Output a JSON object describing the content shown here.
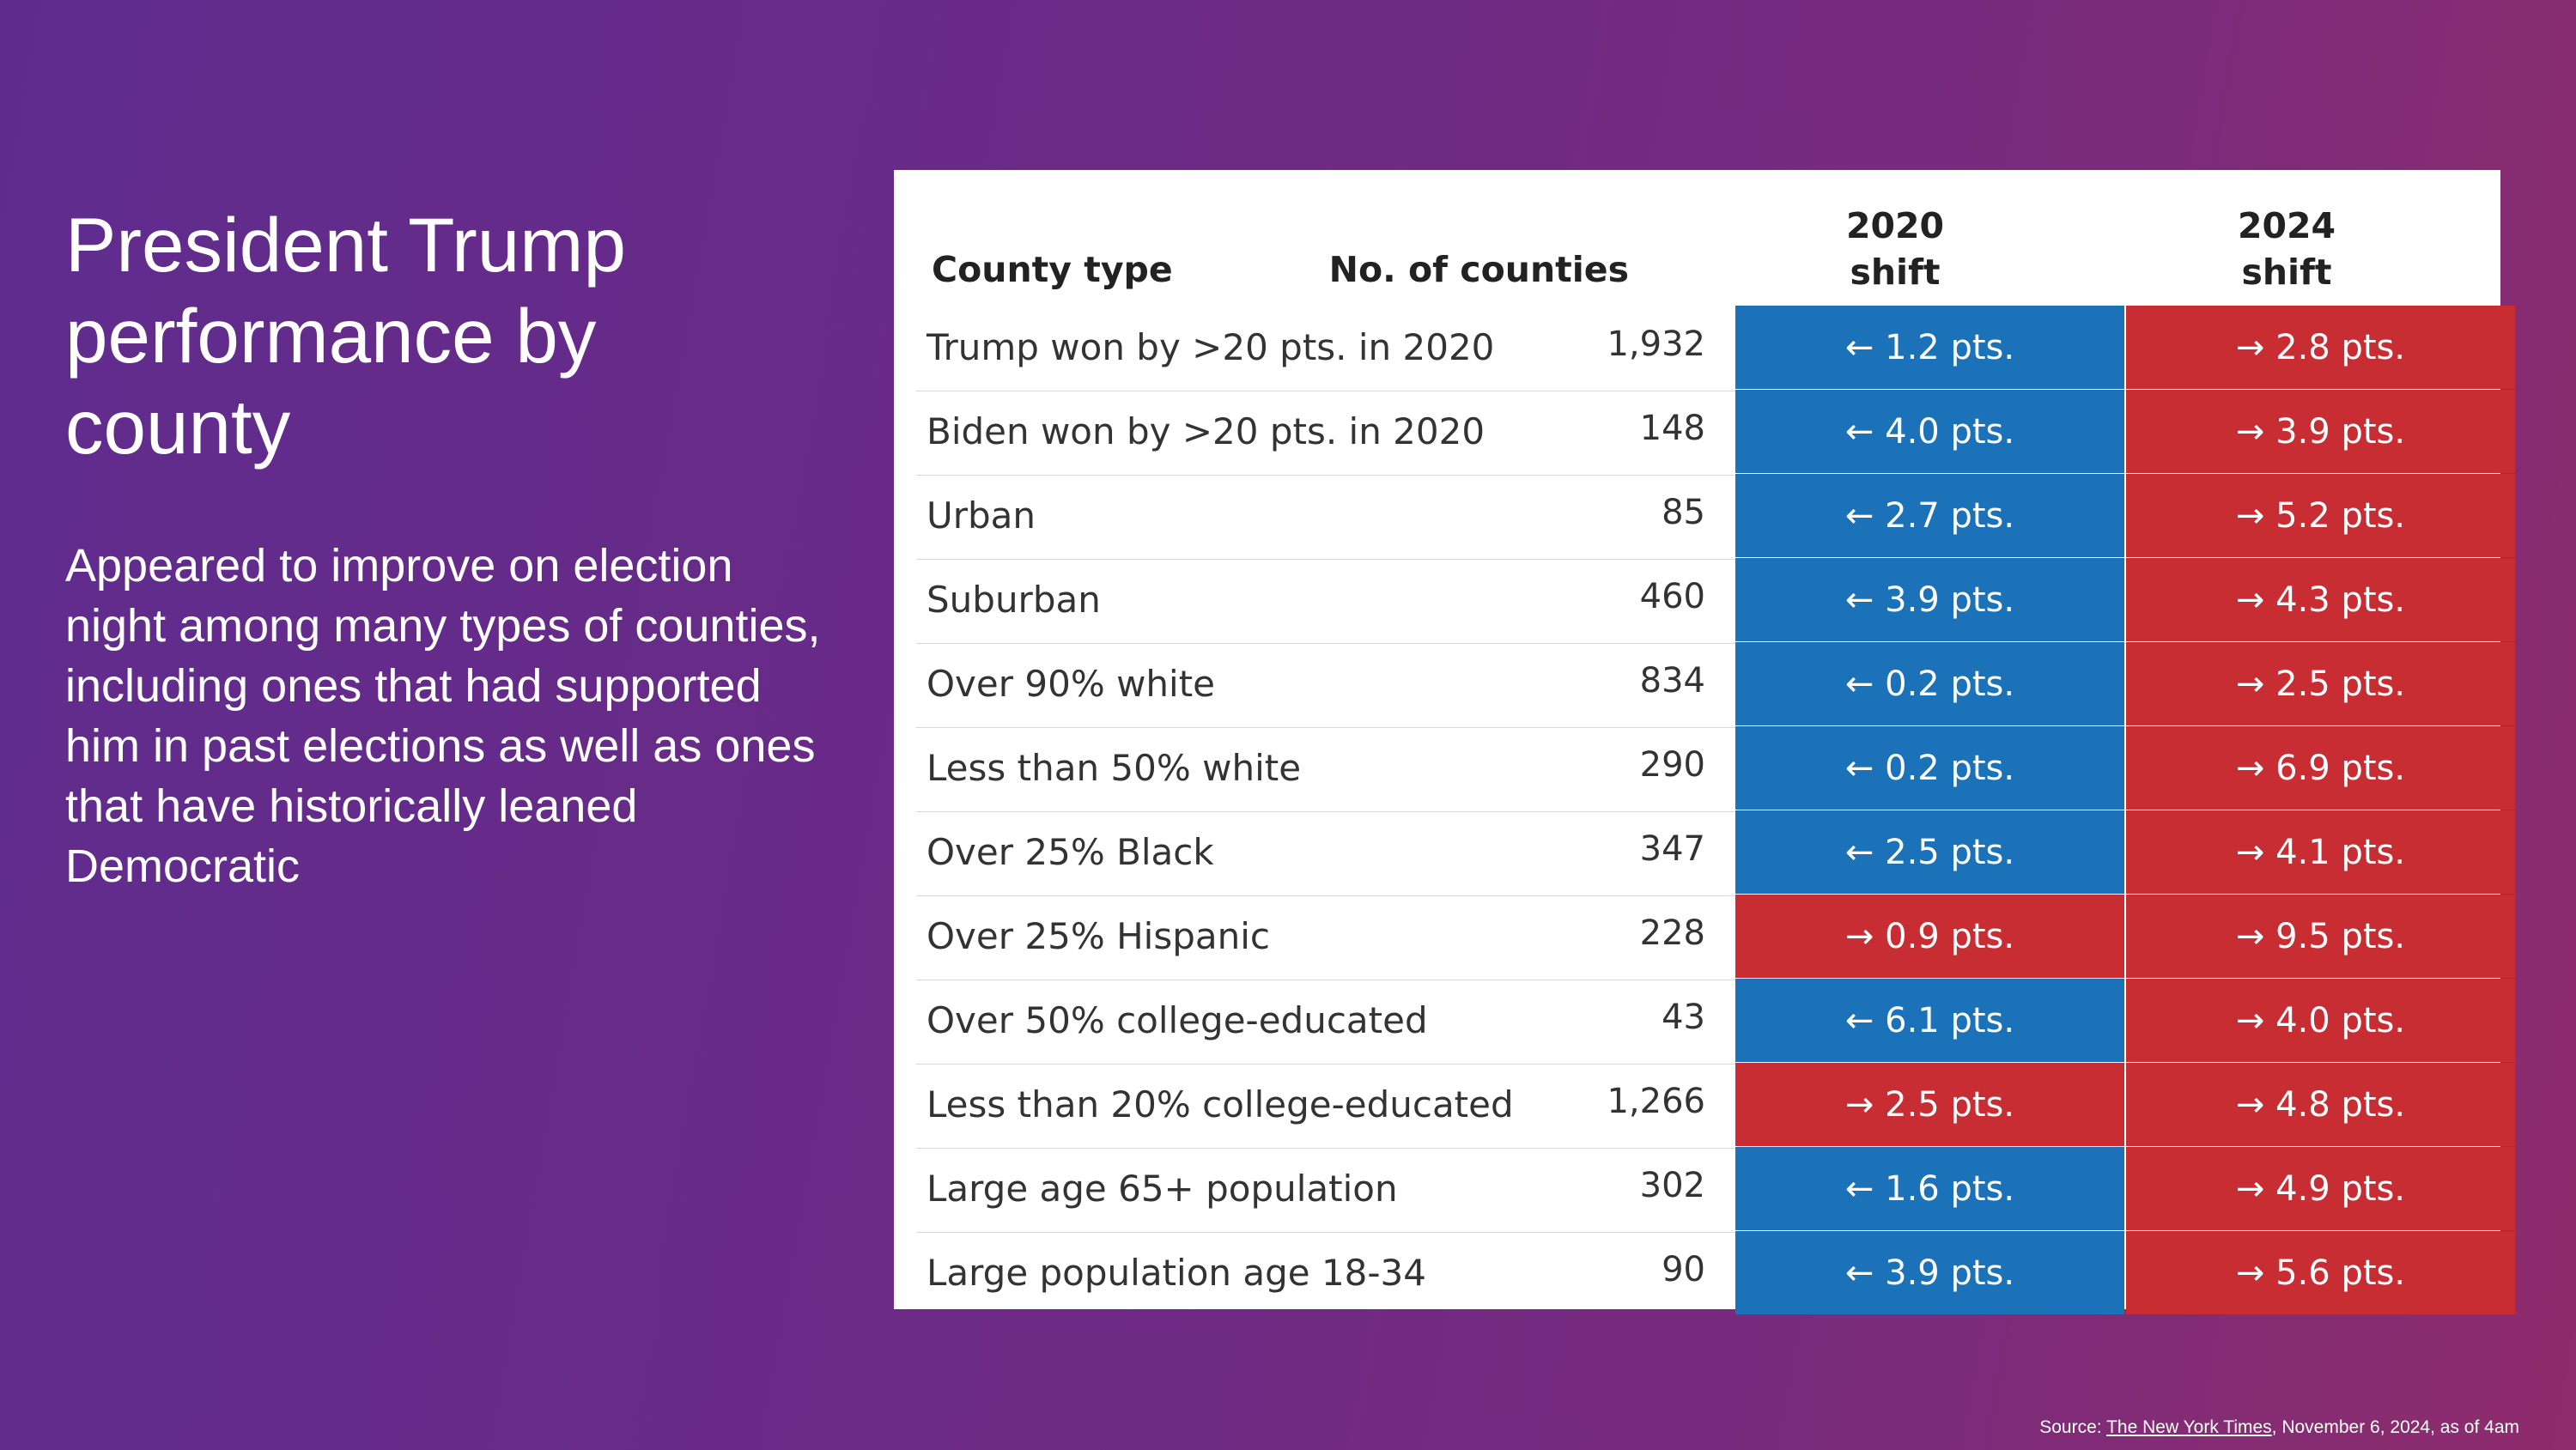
{
  "colors": {
    "background_start": "#5f2c8e",
    "background_end": "#8e2c6c",
    "dem_shift": "#1c72b8",
    "rep_shift": "#c92d34"
  },
  "slide": {
    "title": "President Trump performance by county",
    "subtitle": "Appeared to improve on election night among many types of counties, including ones that had supported him in past elections as well as ones that have historically leaned Democratic"
  },
  "table": {
    "headers": {
      "county_type": "County type",
      "num_counties": "No. of counties",
      "shift_2020_line1": "2020",
      "shift_2020_line2": "shift",
      "shift_2024_line1": "2024",
      "shift_2024_line2": "shift"
    },
    "rows": [
      {
        "county": "Trump won by >20 pts. in 2020",
        "count": "1,932",
        "shift_2020": "← 1.2 pts.",
        "shift_2020_dir": "dem",
        "shift_2024": "→ 2.8 pts.",
        "shift_2024_dir": "rep"
      },
      {
        "county": "Biden won by >20 pts. in 2020",
        "count": "148",
        "shift_2020": "← 4.0 pts.",
        "shift_2020_dir": "dem",
        "shift_2024": "→ 3.9 pts.",
        "shift_2024_dir": "rep"
      },
      {
        "county": "Urban",
        "count": "85",
        "shift_2020": "← 2.7 pts.",
        "shift_2020_dir": "dem",
        "shift_2024": "→ 5.2 pts.",
        "shift_2024_dir": "rep"
      },
      {
        "county": "Suburban",
        "count": "460",
        "shift_2020": "← 3.9 pts.",
        "shift_2020_dir": "dem",
        "shift_2024": "→ 4.3 pts.",
        "shift_2024_dir": "rep"
      },
      {
        "county": "Over 90% white",
        "count": "834",
        "shift_2020": "← 0.2 pts.",
        "shift_2020_dir": "dem",
        "shift_2024": "→ 2.5 pts.",
        "shift_2024_dir": "rep"
      },
      {
        "county": "Less than 50% white",
        "count": "290",
        "shift_2020": "← 0.2 pts.",
        "shift_2020_dir": "dem",
        "shift_2024": "→ 6.9 pts.",
        "shift_2024_dir": "rep"
      },
      {
        "county": "Over 25% Black",
        "count": "347",
        "shift_2020": "← 2.5 pts.",
        "shift_2020_dir": "dem",
        "shift_2024": "→ 4.1 pts.",
        "shift_2024_dir": "rep"
      },
      {
        "county": "Over 25% Hispanic",
        "count": "228",
        "shift_2020": "→ 0.9 pts.",
        "shift_2020_dir": "rep",
        "shift_2024": "→ 9.5 pts.",
        "shift_2024_dir": "rep"
      },
      {
        "county": "Over 50% college-educated",
        "count": "43",
        "shift_2020": "← 6.1 pts.",
        "shift_2020_dir": "dem",
        "shift_2024": "→ 4.0 pts.",
        "shift_2024_dir": "rep"
      },
      {
        "county": "Less than 20% college-educated",
        "count": "1,266",
        "shift_2020": "→ 2.5 pts.",
        "shift_2020_dir": "rep",
        "shift_2024": "→ 4.8 pts.",
        "shift_2024_dir": "rep"
      },
      {
        "county": "Large age 65+ population",
        "count": "302",
        "shift_2020": "← 1.6 pts.",
        "shift_2020_dir": "dem",
        "shift_2024": "→ 4.9 pts.",
        "shift_2024_dir": "rep"
      },
      {
        "county": "Large population age 18-34",
        "count": "90",
        "shift_2020": "← 3.9 pts.",
        "shift_2020_dir": "dem",
        "shift_2024": "→ 5.6 pts.",
        "shift_2024_dir": "rep"
      }
    ]
  },
  "source": {
    "prefix": "Source: ",
    "link_text": "The New York Times",
    "suffix": ", November 6, 2024, as of 4am"
  }
}
